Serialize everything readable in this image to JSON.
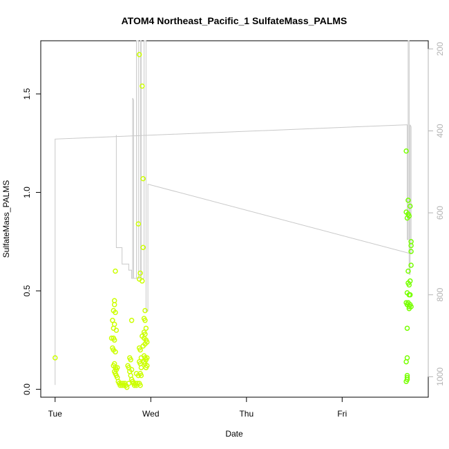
{
  "chart_data": {
    "type": "scatter",
    "title": "ATOM4 Northeast_Pacific_1 SulfateMass_PALMS",
    "xlabel": "Date",
    "ylabel": "SulfateMass_PALMS",
    "x_ticks": [
      "Tue",
      "Wed",
      "Thu",
      "Fri"
    ],
    "xlim": [
      -0.15,
      3.9
    ],
    "ylim": [
      -0.04,
      1.77
    ],
    "y_ticks": [
      0.0,
      0.5,
      1.0,
      1.5
    ],
    "y2_ticks": [
      200,
      400,
      600,
      800,
      1000
    ],
    "y2lim": [
      1050,
      180
    ],
    "grid": false,
    "legend": "none",
    "colors": {
      "axis": "#000000",
      "secondary_axis": "#b3b3b3",
      "altitude_line": "#c8c8c8",
      "early_points": "#ccff00",
      "late_points": "#77ff00"
    },
    "series": [
      {
        "values": [
          [
            0.0,
            0.16
          ],
          [
            0.62,
            0.45
          ],
          [
            0.62,
            0.43
          ],
          [
            0.61,
            0.4
          ],
          [
            0.63,
            0.39
          ],
          [
            0.6,
            0.35
          ],
          [
            0.62,
            0.33
          ],
          [
            0.61,
            0.31
          ],
          [
            0.64,
            0.3
          ],
          [
            0.59,
            0.26
          ],
          [
            0.61,
            0.26
          ],
          [
            0.62,
            0.25
          ],
          [
            0.6,
            0.21
          ],
          [
            0.61,
            0.2
          ],
          [
            0.63,
            0.19
          ],
          [
            0.62,
            0.13
          ],
          [
            0.61,
            0.12
          ],
          [
            0.63,
            0.11
          ],
          [
            0.64,
            0.1
          ],
          [
            0.65,
            0.11
          ],
          [
            0.62,
            0.09
          ],
          [
            0.63,
            0.08
          ],
          [
            0.64,
            0.07
          ],
          [
            0.65,
            0.06
          ],
          [
            0.66,
            0.04
          ],
          [
            0.67,
            0.03
          ],
          [
            0.68,
            0.02
          ],
          [
            0.69,
            0.03
          ],
          [
            0.7,
            0.02
          ],
          [
            0.71,
            0.03
          ],
          [
            0.72,
            0.02
          ],
          [
            0.73,
            0.03
          ],
          [
            0.74,
            0.02
          ],
          [
            0.75,
            0.01
          ],
          [
            0.63,
            0.6
          ],
          [
            0.8,
            0.35
          ],
          [
            0.8,
            0.1
          ],
          [
            0.79,
            0.07
          ],
          [
            0.8,
            0.05
          ],
          [
            0.81,
            0.04
          ],
          [
            0.82,
            0.03
          ],
          [
            0.83,
            0.02
          ],
          [
            0.84,
            0.03
          ],
          [
            0.85,
            0.02
          ],
          [
            0.86,
            0.03
          ],
          [
            0.87,
            0.07
          ],
          [
            0.85,
            0.08
          ],
          [
            0.78,
            0.16
          ],
          [
            0.79,
            0.15
          ],
          [
            0.76,
            0.12
          ],
          [
            0.77,
            0.11
          ],
          [
            0.78,
            0.09
          ],
          [
            0.77,
            0.03
          ],
          [
            0.88,
            1.7
          ],
          [
            0.91,
            1.54
          ],
          [
            0.87,
            0.84
          ],
          [
            0.92,
            0.72
          ],
          [
            0.92,
            1.07
          ],
          [
            0.89,
            0.59
          ],
          [
            0.88,
            0.56
          ],
          [
            0.91,
            0.55
          ],
          [
            0.88,
            0.21
          ],
          [
            0.89,
            0.2
          ],
          [
            0.9,
            0.16
          ],
          [
            0.88,
            0.14
          ],
          [
            0.89,
            0.13
          ],
          [
            0.9,
            0.11
          ],
          [
            0.91,
            0.27
          ],
          [
            0.92,
            0.22
          ],
          [
            0.89,
            0.08
          ],
          [
            0.9,
            0.07
          ],
          [
            0.88,
            0.03
          ],
          [
            0.89,
            0.02
          ],
          [
            0.94,
            0.4
          ],
          [
            0.93,
            0.36
          ],
          [
            0.94,
            0.35
          ],
          [
            0.95,
            0.31
          ],
          [
            0.93,
            0.29
          ],
          [
            0.94,
            0.28
          ],
          [
            0.93,
            0.26
          ],
          [
            0.95,
            0.25
          ],
          [
            0.96,
            0.24
          ],
          [
            0.94,
            0.23
          ],
          [
            0.93,
            0.17
          ],
          [
            0.94,
            0.16
          ],
          [
            0.95,
            0.15
          ],
          [
            0.96,
            0.16
          ],
          [
            0.93,
            0.14
          ],
          [
            0.94,
            0.13
          ],
          [
            0.95,
            0.11
          ],
          [
            0.96,
            0.12
          ]
        ]
      },
      {
        "values": [
          [
            3.67,
            1.21
          ],
          [
            3.69,
            0.96
          ],
          [
            3.71,
            0.93
          ],
          [
            3.67,
            0.9
          ],
          [
            3.69,
            0.89
          ],
          [
            3.7,
            0.88
          ],
          [
            3.68,
            0.87
          ],
          [
            3.72,
            0.75
          ],
          [
            3.72,
            0.73
          ],
          [
            3.72,
            0.7
          ],
          [
            3.72,
            0.63
          ],
          [
            3.69,
            0.6
          ],
          [
            3.71,
            0.55
          ],
          [
            3.69,
            0.54
          ],
          [
            3.7,
            0.53
          ],
          [
            3.68,
            0.49
          ],
          [
            3.7,
            0.48
          ],
          [
            3.71,
            0.48
          ],
          [
            3.67,
            0.44
          ],
          [
            3.68,
            0.43
          ],
          [
            3.69,
            0.44
          ],
          [
            3.7,
            0.42
          ],
          [
            3.71,
            0.43
          ],
          [
            3.72,
            0.42
          ],
          [
            3.7,
            0.41
          ],
          [
            3.68,
            0.31
          ],
          [
            3.68,
            0.16
          ],
          [
            3.67,
            0.14
          ],
          [
            3.68,
            0.07
          ],
          [
            3.68,
            0.06
          ],
          [
            3.68,
            0.05
          ],
          [
            3.67,
            0.04
          ]
        ]
      }
    ],
    "altitude_line": [
      [
        0.0,
        1020
      ],
      [
        0.0,
        420
      ],
      [
        3.68,
        385
      ],
      [
        3.68,
        665
      ],
      [
        3.69,
        665
      ],
      [
        3.69,
        180
      ],
      [
        3.7,
        180
      ],
      [
        3.7,
        750
      ],
      [
        3.71,
        750
      ],
      [
        3.71,
        385
      ],
      [
        3.72,
        390
      ],
      [
        3.72,
        700
      ],
      [
        0.97,
        530
      ],
      [
        0.97,
        840
      ],
      [
        0.95,
        840
      ],
      [
        0.95,
        180
      ],
      [
        0.93,
        180
      ],
      [
        0.93,
        760
      ],
      [
        0.9,
        760
      ],
      [
        0.9,
        180
      ],
      [
        0.89,
        180
      ],
      [
        0.89,
        760
      ],
      [
        0.87,
        760
      ],
      [
        0.87,
        180
      ],
      [
        0.85,
        180
      ],
      [
        0.85,
        760
      ],
      [
        0.82,
        760
      ],
      [
        0.82,
        325
      ],
      [
        0.81,
        320
      ],
      [
        0.81,
        760
      ],
      [
        0.8,
        760
      ],
      [
        0.8,
        740
      ],
      [
        0.77,
        740
      ],
      [
        0.77,
        725
      ],
      [
        0.7,
        725
      ],
      [
        0.7,
        685
      ],
      [
        0.64,
        685
      ],
      [
        0.64,
        410
      ]
    ]
  }
}
